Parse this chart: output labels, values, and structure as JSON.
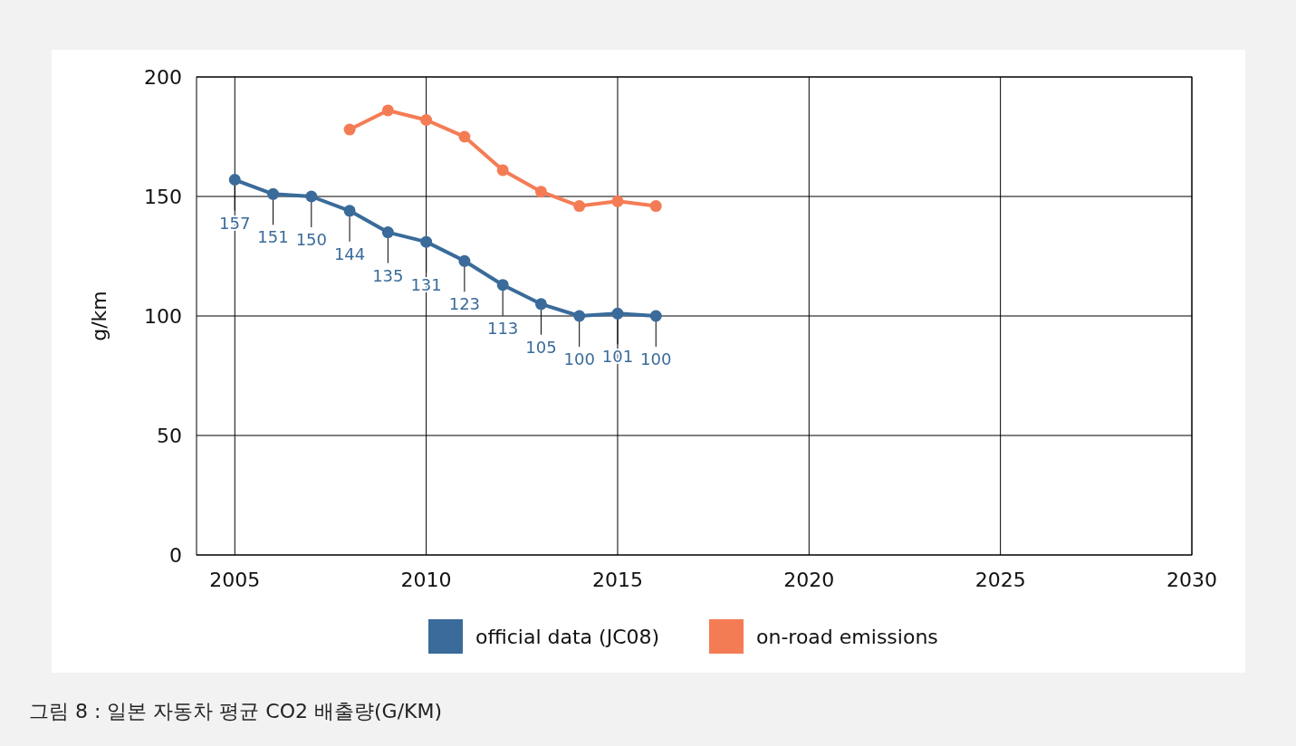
{
  "chart_data": {
    "type": "line",
    "ylabel": "g/km",
    "xlim": [
      2004,
      2030
    ],
    "xticks": [
      2005,
      2010,
      2015,
      2020,
      2025,
      2030
    ],
    "ylim": [
      0,
      200
    ],
    "yticks": [
      0,
      50,
      100,
      150,
      200
    ],
    "grid": true,
    "legend": "bottom",
    "marker": "circle",
    "line_style": "solid",
    "series": [
      {
        "name": "official data (JC08)",
        "color": "#3a6b9a",
        "x": [
          2005,
          2006,
          2007,
          2008,
          2009,
          2010,
          2011,
          2012,
          2013,
          2014,
          2015,
          2016
        ],
        "values": [
          157,
          151,
          150,
          144,
          135,
          131,
          123,
          113,
          105,
          100,
          101,
          100
        ],
        "value_labels": [
          "157",
          "151",
          "150",
          "144",
          "135",
          "131",
          "123",
          "113",
          "105",
          "100",
          "101",
          "100"
        ]
      },
      {
        "name": "on-road emissions",
        "color": "#f47c55",
        "x": [
          2008,
          2009,
          2010,
          2011,
          2012,
          2013,
          2014,
          2015,
          2016
        ],
        "values": [
          178,
          186,
          182,
          175,
          161,
          152,
          146,
          148,
          146
        ]
      }
    ],
    "annotations": [
      "그림 8 : 일본 자동차 평균 CO2 배출량(G/KM)"
    ]
  }
}
